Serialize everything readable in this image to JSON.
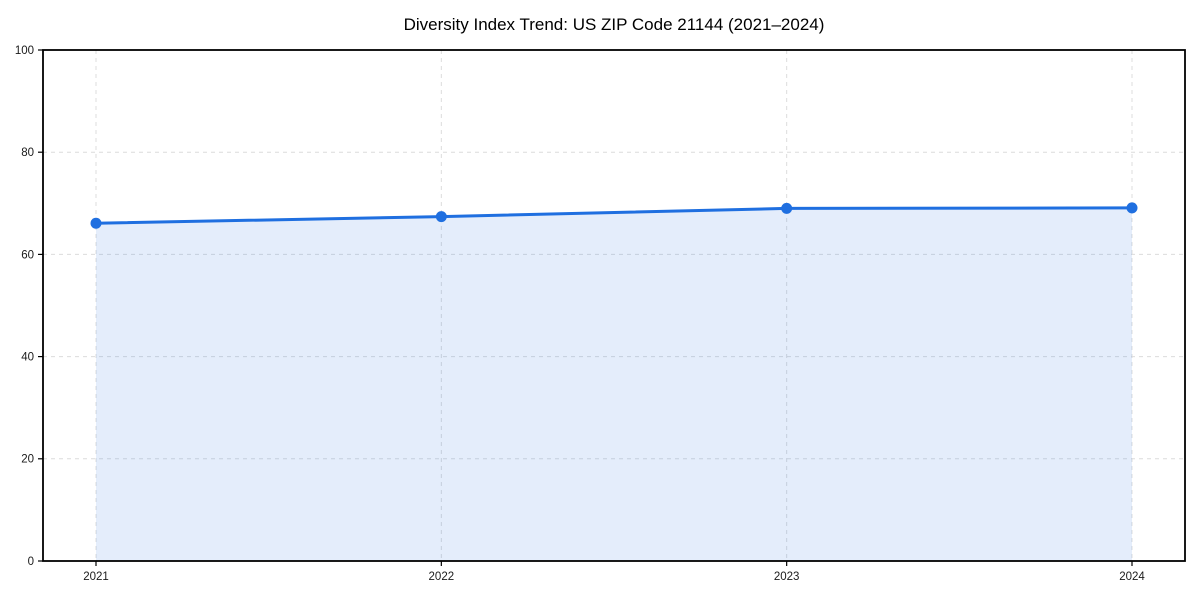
{
  "chart_data": {
    "type": "area",
    "title": "Diversity Index Trend: US ZIP Code 21144 (2021–2024)",
    "x": [
      2021,
      2022,
      2023,
      2024
    ],
    "xticks": [
      "2021",
      "2022",
      "2023",
      "2024"
    ],
    "series": [
      {
        "name": "Diversity Index",
        "values": [
          66.1,
          67.4,
          69.0,
          69.1
        ]
      }
    ],
    "xlabel": "",
    "ylabel": "",
    "ylim": [
      0,
      100
    ],
    "yticks": [
      0,
      20,
      40,
      60,
      80,
      100
    ],
    "grid": true,
    "grid_style": "dashed",
    "legend_position": "none",
    "colors": {
      "line": "#1f6fe0",
      "marker": "#1f6fe0",
      "fill": "#1f6fe0",
      "fill_opacity": 0.12,
      "grid": "#dcdcdc",
      "spine": "#000000",
      "tick_text": "#1a1a1a",
      "title_text": "#000000",
      "background": "#ffffff"
    }
  }
}
